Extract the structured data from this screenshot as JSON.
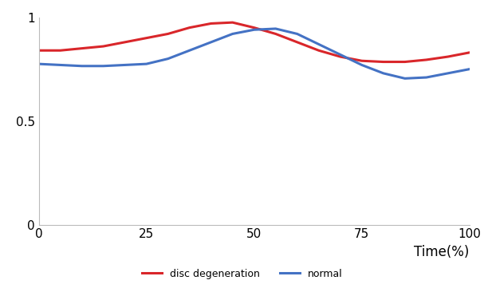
{
  "chart_data": {
    "type": "line",
    "x": [
      0,
      5,
      10,
      15,
      20,
      25,
      30,
      35,
      40,
      45,
      50,
      55,
      60,
      65,
      70,
      75,
      80,
      85,
      90,
      95,
      100
    ],
    "series": [
      {
        "name": "disc degeneration",
        "color": "#d9262a",
        "values": [
          0.84,
          0.84,
          0.85,
          0.86,
          0.88,
          0.9,
          0.92,
          0.95,
          0.97,
          0.975,
          0.95,
          0.92,
          0.88,
          0.84,
          0.81,
          0.79,
          0.785,
          0.785,
          0.795,
          0.81,
          0.83
        ]
      },
      {
        "name": "normal",
        "color": "#4472c4",
        "values": [
          0.775,
          0.77,
          0.765,
          0.765,
          0.77,
          0.775,
          0.8,
          0.84,
          0.88,
          0.92,
          0.94,
          0.945,
          0.92,
          0.87,
          0.82,
          0.77,
          0.73,
          0.705,
          0.71,
          0.73,
          0.75
        ]
      }
    ],
    "x_label": "Time(%)",
    "xlim": [
      0,
      100
    ],
    "xticks": [
      0,
      25,
      50,
      75,
      100
    ],
    "ylim": [
      0,
      1
    ],
    "yticks": [
      0,
      0.5,
      1
    ],
    "grid": false,
    "legend": "lower center"
  }
}
